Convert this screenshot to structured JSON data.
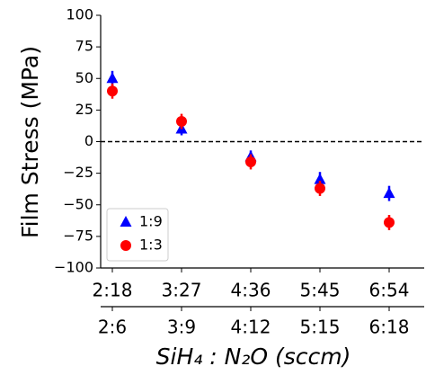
{
  "chart_data": {
    "type": "scatter",
    "xlabel": "SiH₄ : N₂O (sccm)",
    "ylabel": "Film Stress (MPa)",
    "categories": [
      "2:18",
      "3:27",
      "4:36",
      "5:45",
      "6:54"
    ],
    "categories_color": "#0000ff",
    "secondary_categories": [
      "2:6",
      "3:9",
      "4:12",
      "5:15",
      "6:18"
    ],
    "secondary_categories_color": "#ff0000",
    "series": [
      {
        "name": "1:9",
        "color": "#0000ff",
        "marker": "triangle",
        "values": [
          50,
          10,
          -12,
          -30,
          -41
        ],
        "errors": [
          6,
          5,
          5,
          6,
          6
        ]
      },
      {
        "name": "1:3",
        "color": "#ff0000",
        "marker": "circle",
        "values": [
          40,
          16,
          -16,
          -37,
          -64
        ],
        "errors": [
          6,
          6,
          6,
          6,
          6
        ]
      }
    ],
    "ylim": [
      -100,
      100
    ],
    "yticks": [
      {
        "value": -100,
        "label": "−100"
      },
      {
        "value": -75,
        "label": "−75"
      },
      {
        "value": -50,
        "label": "−50"
      },
      {
        "value": -25,
        "label": "−25"
      },
      0,
      25,
      50,
      75,
      100
    ],
    "hline": 0,
    "legend": "lower left"
  }
}
